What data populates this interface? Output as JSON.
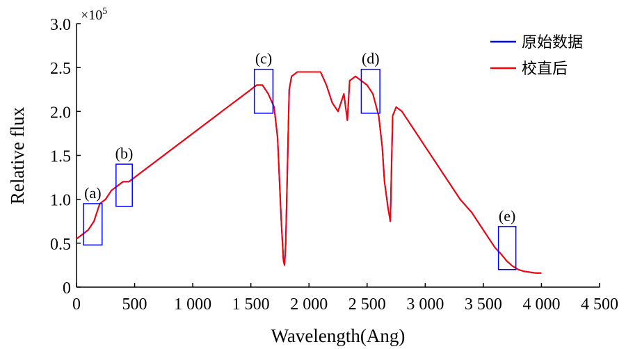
{
  "chart_data": {
    "type": "line",
    "xlabel": "Wavelength(Ang)",
    "ylabel": "Relative flux",
    "y_exponent_label": "×10",
    "y_exponent_power": "5",
    "xlim": [
      0,
      4500
    ],
    "ylim": [
      0,
      3.0
    ],
    "x_ticks": [
      0,
      500,
      1000,
      1500,
      2000,
      2500,
      3000,
      3500,
      4000,
      4500
    ],
    "x_tick_labels": [
      "0",
      "500",
      "1 000",
      "1 500",
      "2 000",
      "2 500",
      "3 000",
      "3 500",
      "4 000",
      "4 500"
    ],
    "y_ticks": [
      0,
      0.5,
      1.0,
      1.5,
      2.0,
      2.5,
      3.0
    ],
    "y_tick_labels": [
      "0",
      "0.5",
      "1.0",
      "1.5",
      "2.0",
      "2.5",
      "3.0"
    ],
    "grid": false,
    "legend_position": "top-right",
    "series": [
      {
        "name": "原始数据",
        "color": "#0000ff",
        "x": [
          0,
          50,
          100,
          150,
          200,
          250,
          300,
          350,
          400,
          450,
          500,
          600,
          700,
          800,
          900,
          1000,
          1100,
          1200,
          1300,
          1400,
          1500,
          1550,
          1600,
          1650,
          1700,
          1730,
          1760,
          1780,
          1790,
          1800,
          1830,
          1850,
          1900,
          1950,
          2000,
          2050,
          2100,
          2150,
          2200,
          2250,
          2300,
          2330,
          2350,
          2400,
          2450,
          2500,
          2550,
          2600,
          2630,
          2650,
          2680,
          2700,
          2720,
          2750,
          2800,
          2850,
          2900,
          2950,
          3000,
          3050,
          3100,
          3150,
          3200,
          3300,
          3400,
          3500,
          3550,
          3600,
          3650,
          3700,
          3750,
          3800,
          3850,
          3900,
          3950,
          4000
        ],
        "y": [
          0.55,
          0.6,
          0.65,
          0.75,
          0.95,
          1.0,
          1.1,
          1.15,
          1.2,
          1.2,
          1.25,
          1.35,
          1.45,
          1.55,
          1.65,
          1.75,
          1.85,
          1.95,
          2.05,
          2.15,
          2.25,
          2.3,
          2.3,
          2.2,
          2.05,
          1.7,
          0.8,
          0.3,
          0.25,
          0.5,
          2.25,
          2.4,
          2.45,
          2.45,
          2.45,
          2.45,
          2.45,
          2.3,
          2.1,
          2.0,
          2.2,
          1.9,
          2.35,
          2.4,
          2.35,
          2.3,
          2.2,
          1.95,
          1.6,
          1.2,
          0.9,
          0.75,
          1.95,
          2.05,
          2.0,
          1.9,
          1.8,
          1.7,
          1.6,
          1.5,
          1.4,
          1.3,
          1.2,
          1.0,
          0.85,
          0.65,
          0.55,
          0.45,
          0.38,
          0.3,
          0.24,
          0.2,
          0.18,
          0.17,
          0.16,
          0.16
        ]
      },
      {
        "name": "校直后",
        "color": "#ff0000",
        "x": [
          0,
          50,
          100,
          150,
          200,
          250,
          300,
          350,
          400,
          450,
          500,
          600,
          700,
          800,
          900,
          1000,
          1100,
          1200,
          1300,
          1400,
          1500,
          1550,
          1600,
          1650,
          1700,
          1730,
          1760,
          1780,
          1790,
          1800,
          1830,
          1850,
          1900,
          1950,
          2000,
          2050,
          2100,
          2150,
          2200,
          2250,
          2300,
          2330,
          2350,
          2400,
          2450,
          2500,
          2550,
          2600,
          2630,
          2650,
          2680,
          2700,
          2720,
          2750,
          2800,
          2850,
          2900,
          2950,
          3000,
          3050,
          3100,
          3150,
          3200,
          3300,
          3400,
          3500,
          3550,
          3600,
          3650,
          3700,
          3750,
          3800,
          3850,
          3900,
          3950,
          4000
        ],
        "y": [
          0.55,
          0.6,
          0.65,
          0.75,
          0.95,
          1.0,
          1.1,
          1.15,
          1.2,
          1.2,
          1.25,
          1.35,
          1.45,
          1.55,
          1.65,
          1.75,
          1.85,
          1.95,
          2.05,
          2.15,
          2.25,
          2.3,
          2.3,
          2.2,
          2.05,
          1.7,
          0.8,
          0.3,
          0.25,
          0.5,
          2.25,
          2.4,
          2.45,
          2.45,
          2.45,
          2.45,
          2.45,
          2.3,
          2.1,
          2.0,
          2.2,
          1.9,
          2.35,
          2.4,
          2.35,
          2.3,
          2.2,
          1.95,
          1.6,
          1.2,
          0.9,
          0.75,
          1.95,
          2.05,
          2.0,
          1.9,
          1.8,
          1.7,
          1.6,
          1.5,
          1.4,
          1.3,
          1.2,
          1.0,
          0.85,
          0.65,
          0.55,
          0.45,
          0.38,
          0.3,
          0.24,
          0.2,
          0.18,
          0.17,
          0.16,
          0.16
        ]
      }
    ],
    "annotations": [
      {
        "label": "(a)",
        "x_range": [
          60,
          220
        ],
        "y_range": [
          0.48,
          0.95
        ]
      },
      {
        "label": "(b)",
        "x_range": [
          340,
          480
        ],
        "y_range": [
          0.92,
          1.4
        ]
      },
      {
        "label": "(c)",
        "x_range": [
          1530,
          1690
        ],
        "y_range": [
          1.98,
          2.48
        ]
      },
      {
        "label": "(d)",
        "x_range": [
          2450,
          2610
        ],
        "y_range": [
          1.98,
          2.48
        ]
      },
      {
        "label": "(e)",
        "x_range": [
          3630,
          3780
        ],
        "y_range": [
          0.2,
          0.69
        ]
      }
    ]
  }
}
